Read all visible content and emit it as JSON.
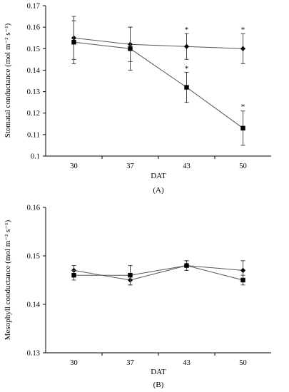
{
  "chart_data": [
    {
      "type": "line",
      "panel_label": "(A)",
      "categories": [
        "30",
        "37",
        "43",
        "50"
      ],
      "xlabel": "DAT",
      "ylabel": "Stomatal conductance (mol m⁻² s⁻¹)",
      "ylim": [
        0.1,
        0.17
      ],
      "yticks": [
        "0.1",
        "0.11",
        "0.12",
        "0.13",
        "0.14",
        "0.15",
        "0.16",
        "0.17"
      ],
      "grid": false,
      "series": [
        {
          "marker": "diamond",
          "values": [
            0.155,
            0.152,
            0.151,
            0.15
          ],
          "errors": [
            0.01,
            0.008,
            0.006,
            0.007
          ]
        },
        {
          "marker": "square",
          "values": [
            0.153,
            0.15,
            0.132,
            0.113
          ],
          "errors": [
            0.01,
            0.01,
            0.007,
            0.008
          ]
        }
      ],
      "annotations": [
        {
          "x": "43",
          "y": 0.157,
          "text": "*"
        },
        {
          "x": "43",
          "y": 0.139,
          "text": "*"
        },
        {
          "x": "50",
          "y": 0.157,
          "text": "*"
        },
        {
          "x": "50",
          "y": 0.1212,
          "text": "*"
        }
      ]
    },
    {
      "type": "line",
      "panel_label": "(B)",
      "categories": [
        "30",
        "37",
        "43",
        "50"
      ],
      "xlabel": "DAT",
      "ylabel": "Mesophyll conductance (mol m⁻² s⁻¹)",
      "ylim": [
        0.13,
        0.16
      ],
      "yticks": [
        "0.13",
        "0.14",
        "0.15",
        "0.16"
      ],
      "grid": false,
      "series": [
        {
          "marker": "diamond",
          "values": [
            0.147,
            0.145,
            0.148,
            0.147
          ],
          "errors": [
            0.001,
            0.001,
            0.001,
            0.002
          ]
        },
        {
          "marker": "square",
          "values": [
            0.146,
            0.146,
            0.148,
            0.145
          ],
          "errors": [
            0.001,
            0.002,
            0.001,
            0.001
          ]
        }
      ],
      "annotations": []
    }
  ]
}
